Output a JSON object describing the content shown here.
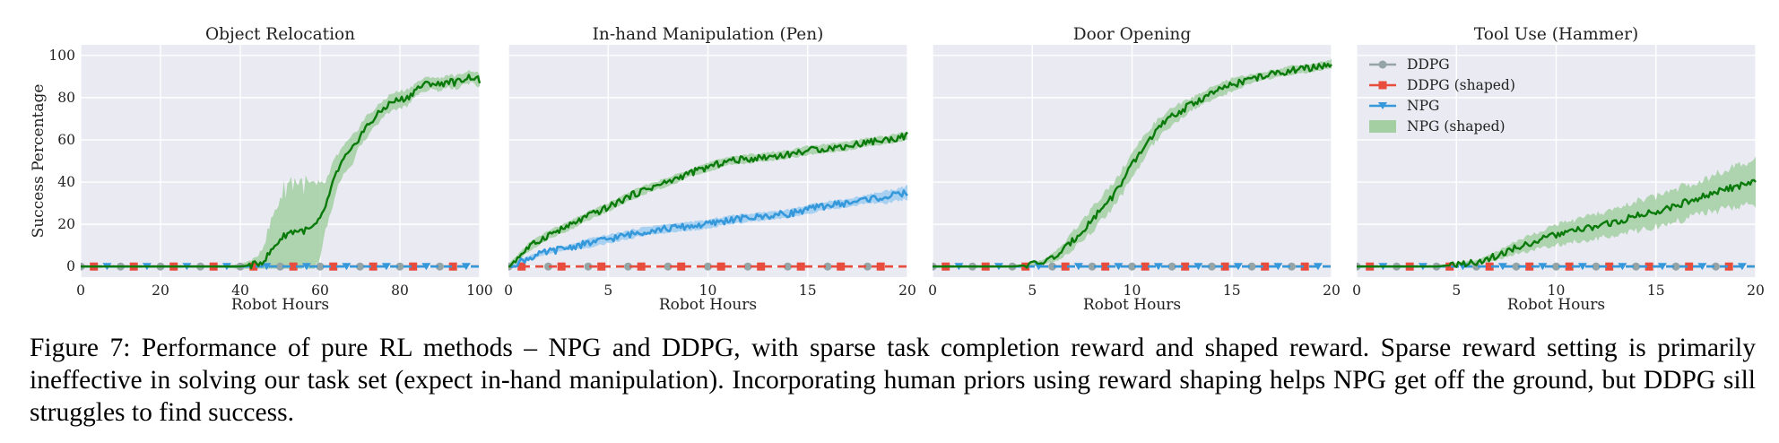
{
  "colors": {
    "panel_bg": "#eaeaf2",
    "grid": "#ffffff",
    "ddpg": "#95a5a6",
    "ddpg_shaped": "#e74c3c",
    "npg": "#3498db",
    "npg_shaped": "#0a7a0a",
    "npg_shaped_band": "#a3cfa3"
  },
  "legend": {
    "items": [
      "DDPG",
      "DDPG (shaped)",
      "NPG",
      "NPG (shaped)"
    ]
  },
  "chart_data": [
    {
      "type": "line",
      "title": "Object Relocation",
      "xlabel": "Robot Hours",
      "ylabel": "Success Percentage",
      "xlim": [
        0,
        100
      ],
      "ylim": [
        -5,
        105
      ],
      "xticks": [
        "0",
        "20",
        "40",
        "60",
        "80",
        "100"
      ],
      "yticks": [
        "0",
        "20",
        "40",
        "60",
        "80",
        "100"
      ],
      "grid": true,
      "series": [
        {
          "name": "DDPG",
          "x": [
            0,
            100
          ],
          "y": [
            0,
            0
          ]
        },
        {
          "name": "DDPG (shaped)",
          "x": [
            0,
            100
          ],
          "y": [
            0,
            0
          ]
        },
        {
          "name": "NPG",
          "x": [
            0,
            100
          ],
          "y": [
            0,
            0
          ]
        },
        {
          "name": "NPG (shaped)",
          "x": [
            0,
            10,
            20,
            30,
            40,
            44,
            46,
            48,
            50,
            52,
            54,
            56,
            58,
            60,
            62,
            64,
            66,
            68,
            70,
            72,
            74,
            76,
            78,
            80,
            82,
            84,
            86,
            88,
            90,
            92,
            94,
            96,
            98,
            100
          ],
          "y": [
            0,
            0,
            0,
            0,
            0,
            1,
            3,
            8,
            13,
            16,
            17,
            17,
            18,
            22,
            32,
            44,
            51,
            55,
            62,
            67,
            71,
            75,
            78,
            79,
            80,
            84,
            86,
            87,
            86,
            88,
            87,
            89,
            90,
            88
          ],
          "band": [
            0,
            0,
            0,
            0,
            1,
            3,
            8,
            15,
            20,
            24,
            24,
            22,
            20,
            15,
            10,
            8,
            6,
            6,
            5,
            5,
            4,
            4,
            4,
            4,
            4,
            3,
            3,
            3,
            3,
            3,
            3,
            3,
            3,
            3
          ]
        }
      ]
    },
    {
      "type": "line",
      "title": "In-hand Manipulation (Pen)",
      "xlabel": "Robot Hours",
      "ylabel": "",
      "xlim": [
        0,
        20
      ],
      "ylim": [
        -5,
        105
      ],
      "xticks": [
        "0",
        "5",
        "10",
        "15",
        "20"
      ],
      "yticks": [],
      "grid": true,
      "series": [
        {
          "name": "DDPG",
          "x": [
            0,
            20
          ],
          "y": [
            0,
            0
          ]
        },
        {
          "name": "DDPG (shaped)",
          "x": [
            0,
            20
          ],
          "y": [
            0,
            0
          ]
        },
        {
          "name": "NPG",
          "x": [
            0,
            1,
            2,
            3,
            4,
            5,
            6,
            7,
            8,
            9,
            10,
            11,
            12,
            13,
            14,
            15,
            16,
            17,
            18,
            19,
            20
          ],
          "y": [
            0,
            4,
            7,
            9,
            11,
            13,
            15,
            17,
            18,
            19,
            20,
            22,
            23,
            24,
            25,
            27,
            29,
            30,
            32,
            33,
            35
          ],
          "band": [
            1,
            1,
            1,
            1,
            2,
            2,
            2,
            2,
            2,
            2,
            2,
            2,
            2,
            2,
            2,
            2,
            2,
            2,
            2,
            3,
            3
          ]
        },
        {
          "name": "NPG (shaped)",
          "x": [
            0,
            1,
            2,
            3,
            4,
            5,
            6,
            7,
            8,
            9,
            10,
            11,
            12,
            13,
            14,
            15,
            16,
            17,
            18,
            19,
            20
          ],
          "y": [
            0,
            9,
            15,
            19,
            24,
            28,
            33,
            37,
            40,
            44,
            47,
            50,
            51,
            52,
            53,
            55,
            56,
            57,
            59,
            60,
            62
          ],
          "band": [
            1,
            2,
            2,
            2,
            2,
            2,
            2,
            2,
            2,
            2,
            2,
            2,
            2,
            2,
            2,
            2,
            2,
            2,
            2,
            2,
            2
          ]
        }
      ]
    },
    {
      "type": "line",
      "title": "Door Opening",
      "xlabel": "Robot Hours",
      "ylabel": "",
      "xlim": [
        0,
        20
      ],
      "ylim": [
        -5,
        105
      ],
      "xticks": [
        "0",
        "5",
        "10",
        "15",
        "20"
      ],
      "yticks": [],
      "grid": true,
      "series": [
        {
          "name": "DDPG",
          "x": [
            0,
            20
          ],
          "y": [
            0,
            0
          ]
        },
        {
          "name": "DDPG (shaped)",
          "x": [
            0,
            20
          ],
          "y": [
            0,
            0
          ]
        },
        {
          "name": "NPG",
          "x": [
            0,
            20
          ],
          "y": [
            0,
            0
          ]
        },
        {
          "name": "NPG (shaped)",
          "x": [
            0,
            4,
            5,
            5.5,
            6,
            6.5,
            7,
            7.5,
            8,
            8.5,
            9,
            9.5,
            10,
            10.5,
            11,
            11.5,
            12,
            13,
            14,
            15,
            16,
            17,
            18,
            19,
            20
          ],
          "y": [
            0,
            0,
            1,
            2,
            4,
            7,
            12,
            17,
            22,
            28,
            33,
            40,
            48,
            55,
            62,
            67,
            71,
            77,
            82,
            86,
            89,
            91,
            93,
            94,
            96
          ],
          "band": [
            0,
            0,
            1,
            1,
            2,
            3,
            4,
            5,
            6,
            6,
            6,
            6,
            6,
            5,
            5,
            4,
            4,
            3,
            3,
            3,
            2,
            2,
            2,
            2,
            2
          ]
        }
      ]
    },
    {
      "type": "line",
      "title": "Tool Use (Hammer)",
      "xlabel": "Robot Hours",
      "ylabel": "",
      "xlim": [
        0,
        20
      ],
      "ylim": [
        -5,
        105
      ],
      "xticks": [
        "0",
        "5",
        "10",
        "15",
        "20"
      ],
      "yticks": [],
      "grid": true,
      "legend_position": "top-left",
      "series": [
        {
          "name": "DDPG",
          "x": [
            0,
            20
          ],
          "y": [
            0,
            0
          ]
        },
        {
          "name": "DDPG (shaped)",
          "x": [
            0,
            20
          ],
          "y": [
            0,
            0
          ]
        },
        {
          "name": "NPG",
          "x": [
            0,
            20
          ],
          "y": [
            0,
            0
          ]
        },
        {
          "name": "NPG (shaped)",
          "x": [
            0,
            4,
            5,
            6,
            7,
            8,
            9,
            10,
            11,
            12,
            13,
            14,
            15,
            16,
            17,
            18,
            19,
            20
          ],
          "y": [
            0,
            0,
            1,
            2,
            5,
            9,
            12,
            15,
            17,
            19,
            21,
            24,
            26,
            29,
            32,
            35,
            38,
            40
          ],
          "band": [
            0,
            0,
            1,
            1,
            2,
            3,
            4,
            5,
            5,
            6,
            6,
            7,
            7,
            8,
            8,
            9,
            9,
            10
          ]
        }
      ]
    }
  ],
  "caption": {
    "label": "Figure 7:",
    "text": "Performance of pure RL methods – NPG and DDPG, with sparse task completion reward and shaped reward. Sparse reward setting is primarily ineffective in solving our task set (expect in-hand manipulation). Incorporating human priors using reward shaping helps NPG get off the ground, but DDPG sill struggles to find success."
  }
}
